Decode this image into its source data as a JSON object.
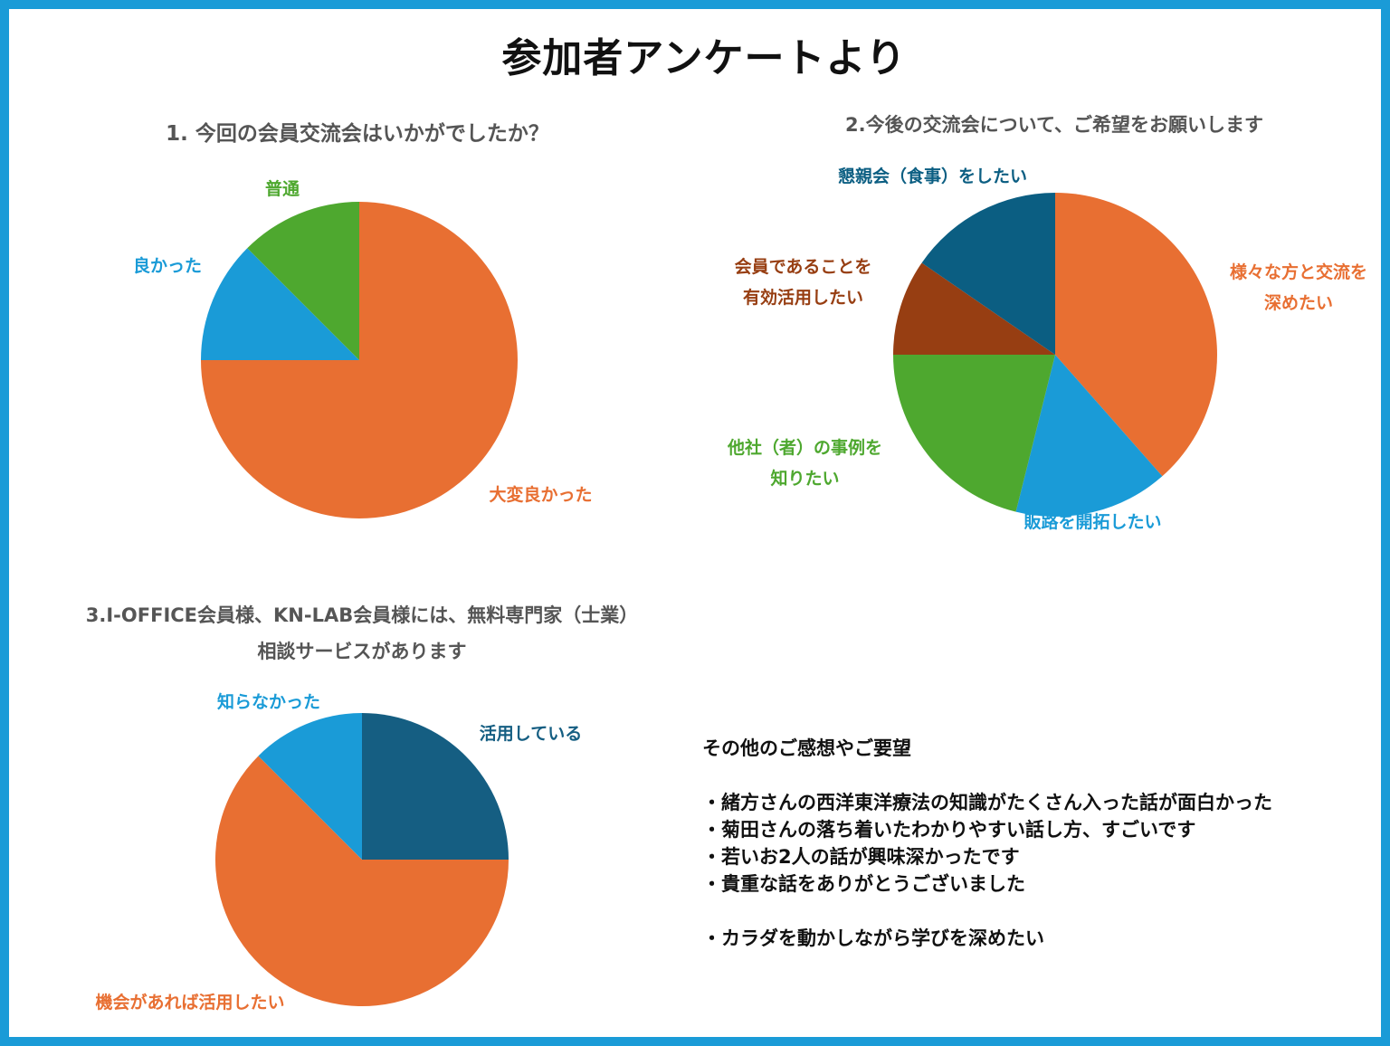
{
  "page_title": "参加者アンケートより",
  "colors": {
    "frame": "#1a9bd7",
    "orange": "#e86f32",
    "blue": "#1a9bd7",
    "green": "#4ea82f",
    "dark_teal": "#0b5e82",
    "brown": "#973e12"
  },
  "chart_data": [
    {
      "type": "pie",
      "title": "1. 今回の会員交流会はいかがでしたか？",
      "slices": [
        {
          "label": "大変良かった",
          "value": 0.75,
          "color": "#e86f32",
          "label_color": "#e86f32"
        },
        {
          "label": "良かった",
          "value": 0.125,
          "color": "#1a9bd7",
          "label_color": "#1a9bd7"
        },
        {
          "label": "普通",
          "value": 0.125,
          "color": "#4ea82f",
          "label_color": "#4ea82f"
        }
      ]
    },
    {
      "type": "pie",
      "title": "2.今後の交流会について、ご希望をお願いします",
      "slices": [
        {
          "label": "様々な方と交流を\n深めたい",
          "value": 0.385,
          "color": "#e86f32",
          "label_color": "#e86f32"
        },
        {
          "label": "販路を開拓したい",
          "value": 0.154,
          "color": "#1a9bd7",
          "label_color": "#1a9bd7"
        },
        {
          "label": "他社（者）の事例を\n知りたい",
          "value": 0.211,
          "color": "#4ea82f",
          "label_color": "#4ea82f"
        },
        {
          "label": "会員であることを\n有効活用したい",
          "value": 0.096,
          "color": "#973e12",
          "label_color": "#973e12"
        },
        {
          "label": "懇親会（食事）をしたい",
          "value": 0.154,
          "color": "#0b5e82",
          "label_color": "#0b5e82"
        }
      ]
    },
    {
      "type": "pie",
      "title": "3.I-OFFICE会員様、KN-LAB会員様には、無料専門家（士業）\n相談サービスがあります",
      "slices": [
        {
          "label": "活用している",
          "value": 0.25,
          "color": "#155e82",
          "label_color": "#155e82"
        },
        {
          "label": "機会があれば活用したい",
          "value": 0.625,
          "color": "#e86f32",
          "label_color": "#e86f32"
        },
        {
          "label": "知らなかった",
          "value": 0.125,
          "color": "#1a9bd7",
          "label_color": "#1a9bd7"
        }
      ]
    }
  ],
  "comments": {
    "heading": "その他のご感想やご要望",
    "items": [
      "・緒方さんの西洋東洋療法の知識がたくさん入った話が面白かった",
      "・菊田さんの落ち着いたわかりやすい話し方、すごいです",
      "・若いお2人の話が興味深かったです",
      "・貴重な話をありがとうございました"
    ],
    "extra_items": [
      "・カラダを動かしながら学びを深めたい"
    ]
  }
}
